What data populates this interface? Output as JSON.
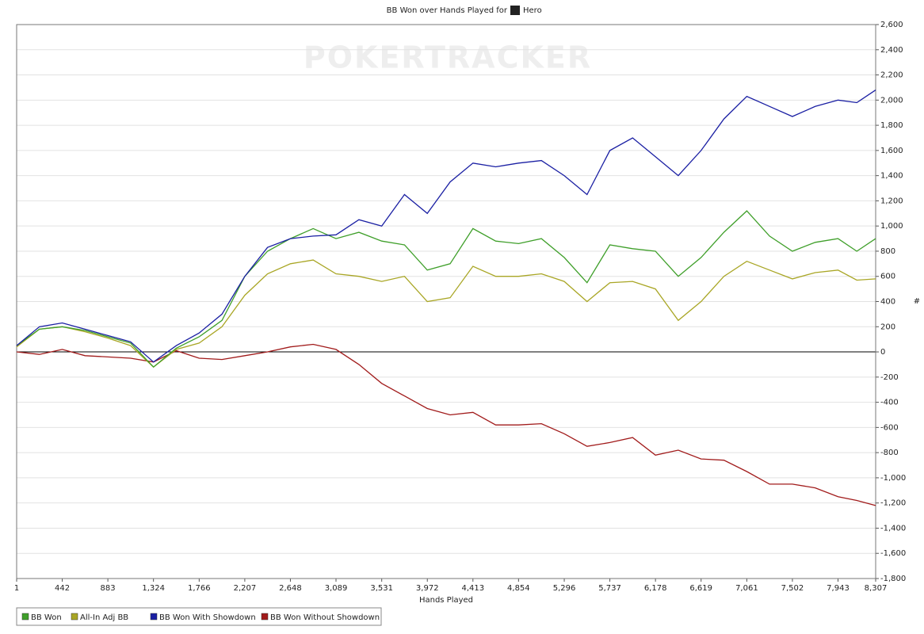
{
  "chart_data": {
    "type": "line",
    "title": "BB Won over Hands Played for",
    "player": "Hero",
    "watermark": "POKERTRACKER",
    "xlabel": "Hands Played",
    "ylabel": "#",
    "x": [
      1,
      221,
      442,
      662,
      883,
      1103,
      1324,
      1545,
      1766,
      1986,
      2207,
      2427,
      2648,
      2868,
      3089,
      3310,
      3531,
      3751,
      3972,
      4192,
      4413,
      4633,
      4854,
      5075,
      5296,
      5516,
      5737,
      5957,
      6178,
      6398,
      6619,
      6840,
      7061,
      7281,
      7502,
      7722,
      7943,
      8125,
      8307
    ],
    "series": [
      {
        "name": "BB Won",
        "color": "#3f9f2a",
        "values": [
          50,
          180,
          200,
          170,
          120,
          70,
          -120,
          30,
          120,
          250,
          600,
          800,
          900,
          980,
          900,
          950,
          880,
          850,
          650,
          700,
          980,
          880,
          860,
          900,
          750,
          550,
          850,
          820,
          800,
          600,
          750,
          950,
          1120,
          920,
          800,
          870,
          900,
          800,
          900
        ]
      },
      {
        "name": "All-In Adj BB",
        "color": "#a9a625",
        "values": [
          40,
          180,
          200,
          160,
          110,
          50,
          -120,
          20,
          70,
          200,
          450,
          620,
          700,
          730,
          620,
          600,
          560,
          600,
          400,
          430,
          680,
          600,
          600,
          620,
          560,
          400,
          550,
          560,
          500,
          250,
          400,
          600,
          720,
          650,
          580,
          630,
          650,
          570,
          580
        ]
      },
      {
        "name": "BB Won With Showdown",
        "color": "#1a1fa3",
        "values": [
          50,
          200,
          230,
          180,
          130,
          80,
          -80,
          50,
          150,
          300,
          600,
          830,
          900,
          920,
          930,
          1050,
          1000,
          1250,
          1100,
          1350,
          1500,
          1470,
          1500,
          1520,
          1400,
          1250,
          1600,
          1700,
          1550,
          1400,
          1600,
          1850,
          2030,
          1950,
          1870,
          1950,
          2000,
          1980,
          2080
        ]
      },
      {
        "name": "BB Won Without Showdown",
        "color": "#a11b1b",
        "values": [
          0,
          -20,
          20,
          -30,
          -40,
          -50,
          -80,
          10,
          -50,
          -60,
          -30,
          0,
          40,
          60,
          20,
          -100,
          -250,
          -350,
          -450,
          -500,
          -480,
          -580,
          -580,
          -570,
          -650,
          -750,
          -720,
          -680,
          -820,
          -780,
          -850,
          -860,
          -950,
          -1050,
          -1050,
          -1080,
          -1150,
          -1180,
          -1220
        ]
      }
    ],
    "xlim": [
      1,
      8307
    ],
    "xticks": [
      1,
      442,
      883,
      {
        "value": 1324,
        "label": "1,324"
      },
      {
        "value": 1766,
        "label": "1,766"
      },
      {
        "value": 2207,
        "label": "2,207"
      },
      {
        "value": 2648,
        "label": "2,648"
      },
      {
        "value": 3089,
        "label": "3,089"
      },
      {
        "value": 3531,
        "label": "3,531"
      },
      {
        "value": 3972,
        "label": "3,972"
      },
      {
        "value": 4413,
        "label": "4,413"
      },
      {
        "value": 4854,
        "label": "4,854"
      },
      {
        "value": 5296,
        "label": "5,296"
      },
      {
        "value": 5737,
        "label": "5,737"
      },
      {
        "value": 6178,
        "label": "6,178"
      },
      {
        "value": 6619,
        "label": "6,619"
      },
      {
        "value": 7061,
        "label": "7,061"
      },
      {
        "value": 7502,
        "label": "7,502"
      },
      {
        "value": 7943,
        "label": "7,943"
      },
      {
        "value": 8307,
        "label": "8,307"
      }
    ],
    "ylim": [
      -1800,
      2600
    ],
    "yticks": [
      {
        "value": -1800,
        "label": "-1,800"
      },
      {
        "value": -1600,
        "label": "-1,600"
      },
      {
        "value": -1400,
        "label": "-1,400"
      },
      {
        "value": -1200,
        "label": "-1,200"
      },
      {
        "value": -1000,
        "label": "-1,000"
      },
      -800,
      -600,
      -400,
      -200,
      0,
      200,
      400,
      600,
      800,
      {
        "value": 1000,
        "label": "1,000"
      },
      {
        "value": 1200,
        "label": "1,200"
      },
      {
        "value": 1400,
        "label": "1,400"
      },
      {
        "value": 1600,
        "label": "1,600"
      },
      {
        "value": 1800,
        "label": "1,800"
      },
      {
        "value": 2000,
        "label": "2,000"
      },
      {
        "value": 2200,
        "label": "2,200"
      },
      {
        "value": 2400,
        "label": "2,400"
      },
      {
        "value": 2600,
        "label": "2,600"
      }
    ],
    "grid": true
  }
}
